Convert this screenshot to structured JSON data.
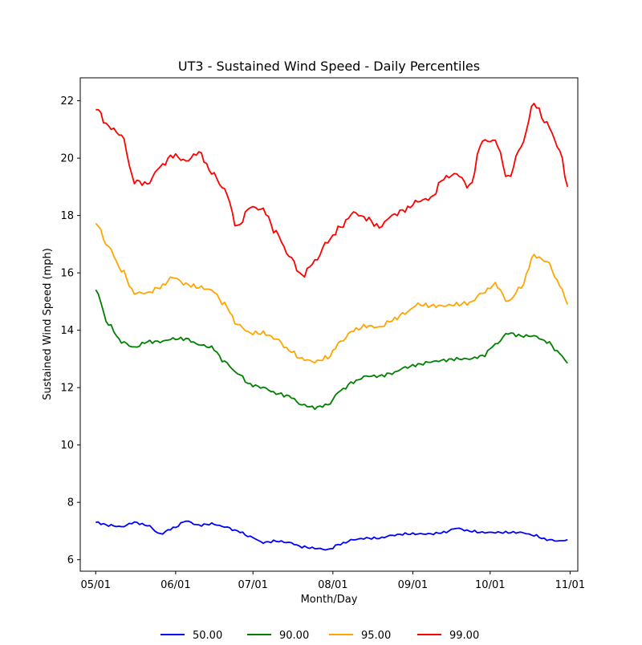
{
  "chart_data": {
    "type": "line",
    "title": "UT3 - Sustained Wind Speed - Daily Percentiles",
    "xlabel": "Month/Day",
    "ylabel": "Sustained Wind Speed (mph)",
    "xlim": [
      "04/25",
      "11/04"
    ],
    "ylim": [
      5.6,
      22.8
    ],
    "x_ticks": [
      "05/01",
      "06/01",
      "07/01",
      "08/01",
      "09/01",
      "10/01",
      "11/01"
    ],
    "y_ticks": [
      6,
      8,
      10,
      12,
      14,
      16,
      18,
      20,
      22
    ],
    "legend_position": "bottom-center",
    "grid": false,
    "x": [
      "05/01",
      "05/06",
      "05/11",
      "05/16",
      "05/21",
      "05/26",
      "05/31",
      "06/05",
      "06/10",
      "06/15",
      "06/20",
      "06/25",
      "06/30",
      "07/05",
      "07/10",
      "07/15",
      "07/20",
      "07/25",
      "07/30",
      "08/04",
      "08/09",
      "08/14",
      "08/19",
      "08/24",
      "08/29",
      "09/03",
      "09/08",
      "09/13",
      "09/18",
      "09/23",
      "09/28",
      "10/03",
      "10/08",
      "10/13",
      "10/18",
      "10/23",
      "10/28",
      "10/31"
    ],
    "series": [
      {
        "name": "50.00",
        "color": "#0000ff",
        "values": [
          7.3,
          7.2,
          7.15,
          7.3,
          7.2,
          6.9,
          7.1,
          7.35,
          7.2,
          7.25,
          7.15,
          7.0,
          6.8,
          6.6,
          6.65,
          6.6,
          6.45,
          6.4,
          6.35,
          6.55,
          6.7,
          6.75,
          6.75,
          6.85,
          6.9,
          6.9,
          6.9,
          6.95,
          7.1,
          7.0,
          6.95,
          6.95,
          6.95,
          6.95,
          6.85,
          6.7,
          6.65,
          6.7
        ]
      },
      {
        "name": "90.00",
        "color": "#008000",
        "values": [
          15.4,
          14.2,
          13.6,
          13.4,
          13.6,
          13.6,
          13.7,
          13.7,
          13.5,
          13.4,
          12.9,
          12.5,
          12.1,
          12.0,
          11.8,
          11.7,
          11.4,
          11.3,
          11.4,
          11.9,
          12.2,
          12.4,
          12.4,
          12.5,
          12.7,
          12.8,
          12.9,
          12.95,
          13.0,
          13.0,
          13.1,
          13.5,
          13.9,
          13.8,
          13.8,
          13.6,
          13.2,
          12.85
        ]
      },
      {
        "name": "95.00",
        "color": "#ffa500",
        "values": [
          17.75,
          16.9,
          16.1,
          15.3,
          15.3,
          15.5,
          15.85,
          15.6,
          15.5,
          15.4,
          14.9,
          14.2,
          13.9,
          13.9,
          13.7,
          13.3,
          13.0,
          12.9,
          13.05,
          13.6,
          14.0,
          14.15,
          14.1,
          14.35,
          14.6,
          14.9,
          14.85,
          14.85,
          14.9,
          14.95,
          15.3,
          15.6,
          15.0,
          15.5,
          16.6,
          16.4,
          15.6,
          14.9
        ]
      },
      {
        "name": "99.00",
        "color": "#ff0000",
        "values": [
          21.75,
          21.1,
          20.8,
          19.2,
          19.1,
          19.7,
          20.1,
          19.9,
          20.2,
          19.5,
          18.9,
          17.6,
          18.3,
          18.2,
          17.4,
          16.6,
          15.9,
          16.4,
          17.1,
          17.6,
          18.1,
          17.9,
          17.6,
          18.0,
          18.2,
          18.5,
          18.6,
          19.3,
          19.45,
          19.0,
          20.6,
          20.6,
          19.3,
          20.4,
          21.9,
          21.2,
          20.3,
          19.0
        ]
      }
    ]
  }
}
